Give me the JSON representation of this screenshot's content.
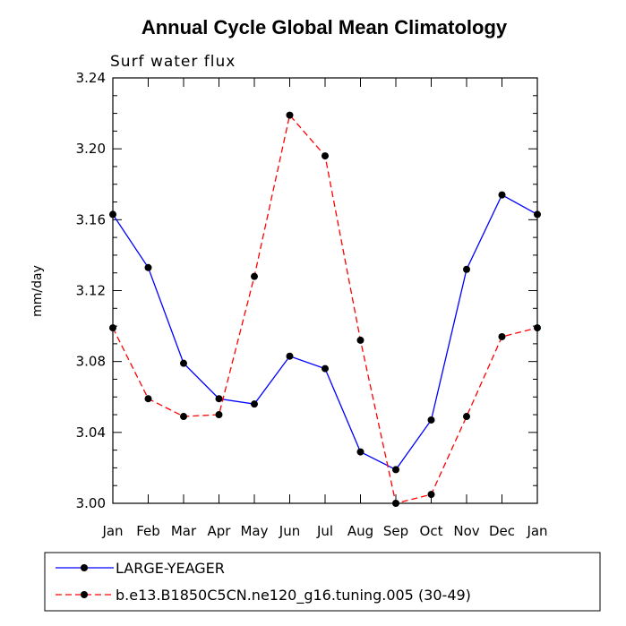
{
  "chart_data": {
    "type": "line",
    "title": "Annual Cycle Global Mean Climatology",
    "subtitle": "Surf water flux",
    "xlabel": "",
    "ylabel": "mm/day",
    "categories": [
      "Jan",
      "Feb",
      "Mar",
      "Apr",
      "May",
      "Jun",
      "Jul",
      "Aug",
      "Sep",
      "Oct",
      "Nov",
      "Dec",
      "Jan"
    ],
    "ylim": [
      3.0,
      3.24
    ],
    "yticks": [
      "3.00",
      "3.04",
      "3.08",
      "3.12",
      "3.16",
      "3.20",
      "3.24"
    ],
    "series": [
      {
        "name": "LARGE-YEAGER",
        "color": "#0000ff",
        "dash": "solid",
        "values": [
          3.163,
          3.133,
          3.079,
          3.059,
          3.056,
          3.083,
          3.076,
          3.029,
          3.019,
          3.047,
          3.132,
          3.174,
          3.163
        ]
      },
      {
        "name": "b.e13.B1850C5CN.ne120_g16.tuning.005 (30-49)",
        "color": "#ff0000",
        "dash": "dashed",
        "values": [
          3.099,
          3.059,
          3.049,
          3.05,
          3.128,
          3.219,
          3.196,
          3.092,
          3.0,
          3.005,
          3.049,
          3.094,
          3.099
        ]
      }
    ]
  }
}
